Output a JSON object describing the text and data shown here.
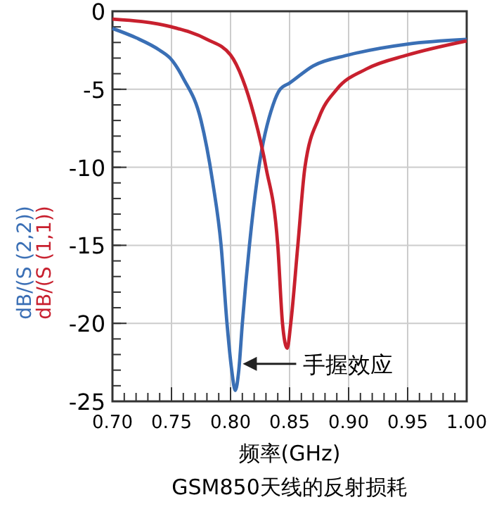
{
  "chart_data": {
    "type": "line",
    "title": "GSM850天线的反射损耗",
    "xlabel": "频率(GHz)",
    "xlim": [
      0.7,
      1.0
    ],
    "xticks": [
      {
        "value": 0.7,
        "label": "0.70"
      },
      {
        "value": 0.75,
        "label": "0.75"
      },
      {
        "value": 0.8,
        "label": "0.80"
      },
      {
        "value": 0.85,
        "label": "0.85"
      },
      {
        "value": 0.9,
        "label": "0.90"
      },
      {
        "value": 0.95,
        "label": "0.95"
      },
      {
        "value": 1.0,
        "label": "1.00"
      }
    ],
    "ylim": [
      -25,
      0
    ],
    "yticks": [
      -25,
      -20,
      -15,
      -10,
      -5,
      0
    ],
    "grid": true,
    "legend": "left",
    "marker": "none",
    "line_style": "solid",
    "annotations": [
      {
        "text": "手握效应",
        "x": 0.808,
        "y": -22.6
      }
    ],
    "series": [
      {
        "name": "dB/(S (2,2))",
        "color": "#3a6fb5",
        "x": [
          0.7,
          0.72,
          0.74,
          0.75,
          0.76,
          0.775,
          0.785,
          0.792,
          0.797,
          0.801,
          0.804,
          0.807,
          0.81,
          0.816,
          0.824,
          0.836,
          0.842,
          0.85,
          0.87,
          0.9,
          0.95,
          1.0
        ],
        "values": [
          -1.1,
          -1.7,
          -2.5,
          -3.1,
          -4.3,
          -7,
          -11,
          -15,
          -20,
          -23,
          -24.3,
          -23,
          -20,
          -15,
          -10,
          -6,
          -5,
          -4.6,
          -3.5,
          -2.8,
          -2.1,
          -1.8
        ]
      },
      {
        "name": "dB/(S (1,1))",
        "color": "#c8202e",
        "x": [
          0.7,
          0.75,
          0.78,
          0.8,
          0.81,
          0.82,
          0.83,
          0.84,
          0.844,
          0.848,
          0.851,
          0.857,
          0.863,
          0.875,
          0.89,
          0.915,
          0.95,
          1.0
        ],
        "values": [
          -0.5,
          -1.0,
          -1.8,
          -2.8,
          -4.3,
          -6.7,
          -10,
          -15,
          -20,
          -21.6,
          -20,
          -15,
          -10,
          -6.8,
          -5,
          -3.7,
          -2.8,
          -1.9
        ]
      }
    ]
  }
}
